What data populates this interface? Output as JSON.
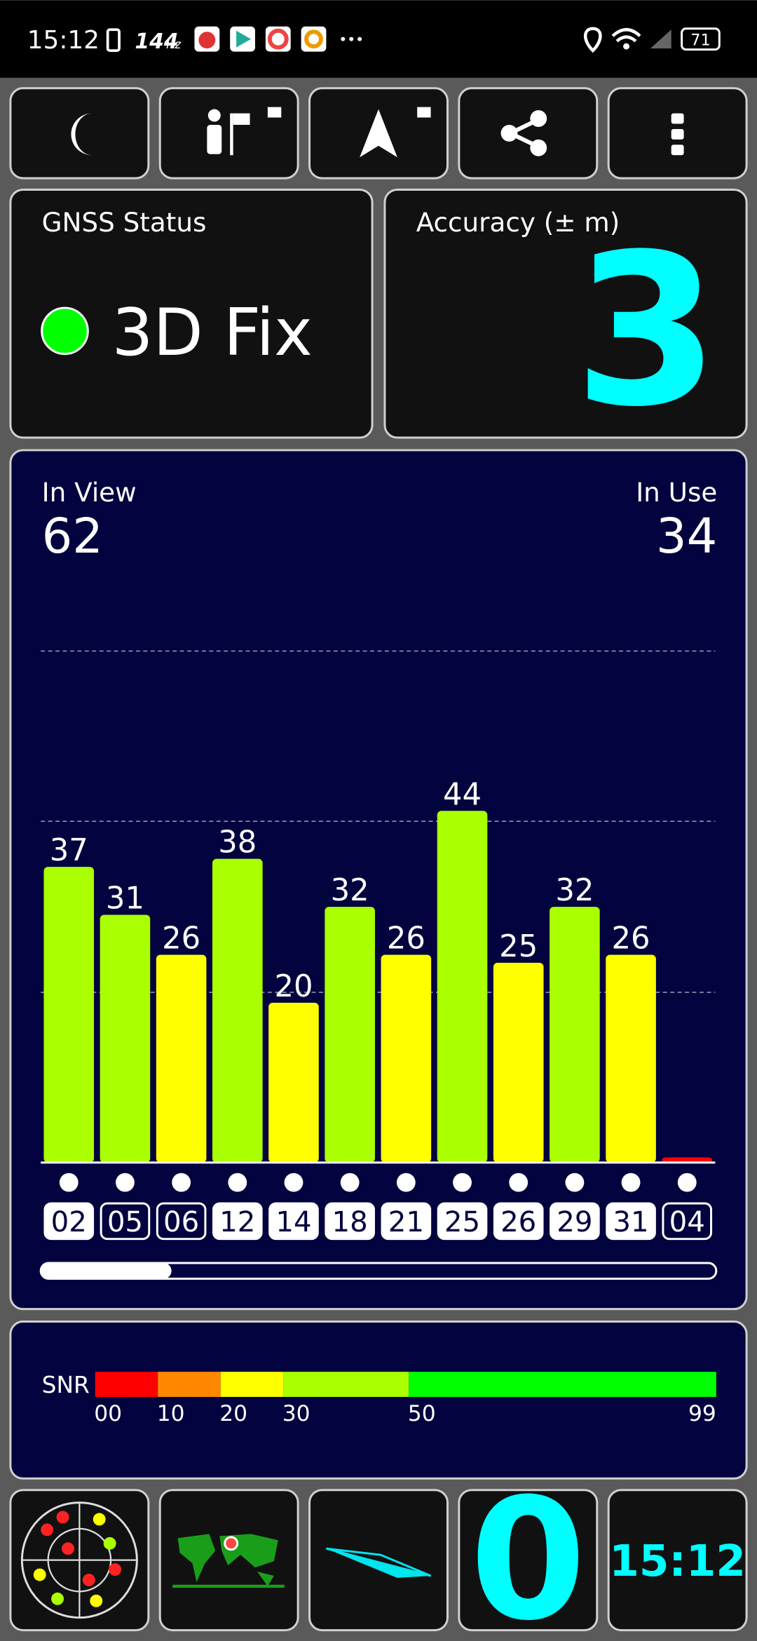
{
  "status_bar": {
    "time": "15:12",
    "refresh_rate": "144",
    "refresh_unit": "Hz",
    "battery": "71"
  },
  "gnss_status": {
    "title": "GNSS Status",
    "fix": "3D Fix"
  },
  "accuracy": {
    "title": "Accuracy (± m)",
    "value": "3"
  },
  "satellites": {
    "in_view_label": "In View",
    "in_view": "62",
    "in_use_label": "In Use",
    "in_use": "34"
  },
  "chart_data": {
    "type": "bar",
    "categories": [
      "02",
      "05",
      "06",
      "12",
      "14",
      "18",
      "21",
      "25",
      "26",
      "29",
      "31",
      "04"
    ],
    "values": [
      37,
      31,
      26,
      38,
      20,
      32,
      26,
      44,
      25,
      32,
      26,
      0
    ],
    "colors": [
      "#aaff00",
      "#aaff00",
      "#ffff00",
      "#aaff00",
      "#ffff00",
      "#aaff00",
      "#ffff00",
      "#aaff00",
      "#ffff00",
      "#aaff00",
      "#ffff00",
      "#ff0000"
    ],
    "in_use": [
      true,
      false,
      false,
      true,
      true,
      true,
      true,
      true,
      true,
      true,
      true,
      false
    ],
    "ylim": [
      0,
      64
    ],
    "yticks": [
      21.3,
      42.7,
      64
    ],
    "grid": true
  },
  "snr_legend": {
    "title": "SNR",
    "xlim": [
      0,
      99
    ],
    "ticks": [
      {
        "value": 0,
        "label": "00"
      },
      10,
      20,
      30,
      50,
      99
    ],
    "colors": [
      "#ff0000",
      "#ff8800",
      "#ffff00",
      "#aaff00",
      "#00ff00"
    ]
  },
  "bottom_bar": {
    "satellite_count": "0",
    "clock": "15:12"
  }
}
